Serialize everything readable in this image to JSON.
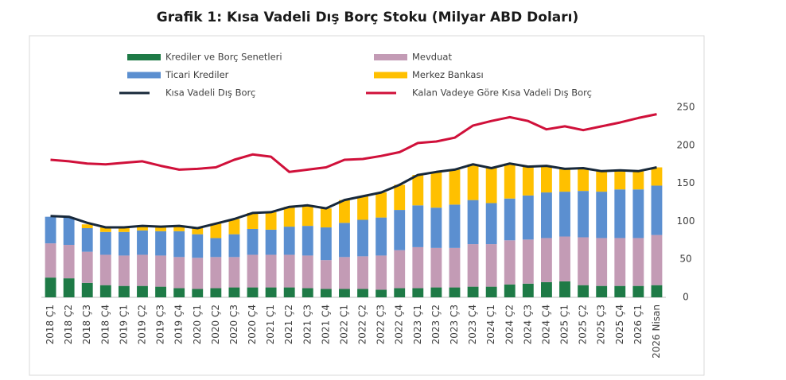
{
  "chart_data": {
    "type": "bar",
    "stacked": true,
    "title": "Grafik 1: Kısa Vadeli Dış Borç Stoku (Milyar ABD Doları)",
    "categories": [
      "2018 Ç1",
      "2018 Ç2",
      "2018 Ç3",
      "2018 Ç4",
      "2019 Ç1",
      "2019 Ç2",
      "2019 Ç3",
      "2019 Ç4",
      "2020 Ç1",
      "2020 Ç2",
      "2020 Ç3",
      "2020 Ç4",
      "2021 Ç1",
      "2021 Ç2",
      "2021 Ç3",
      "2021 Ç4",
      "2022 Ç1",
      "2022 Ç2",
      "2022 Ç3",
      "2022 Ç4",
      "2023 Ç1",
      "2023 Ç2",
      "2023 Ç3",
      "2023 Ç4",
      "2024 Ç1",
      "2024 Ç2",
      "2024 Ç3",
      "2024 Ç4",
      "2025 Ç1",
      "2025 Ç2",
      "2025 Ç3",
      "2025 Ç4",
      "2026 Ç1",
      "2026 Nisan"
    ],
    "series": [
      {
        "name": "Krediler ve Borç Senetleri",
        "type": "bar",
        "color": "#1e7a46",
        "values": [
          26,
          25,
          19,
          16,
          15,
          15,
          14,
          12,
          11,
          12,
          13,
          13,
          13,
          13,
          12,
          11,
          11,
          11,
          10,
          12,
          12,
          13,
          13,
          14,
          14,
          17,
          18,
          20,
          21,
          16,
          15,
          15,
          15,
          16
        ]
      },
      {
        "name": "Mevduat",
        "type": "bar",
        "color": "#c39bb5",
        "values": [
          45,
          44,
          41,
          40,
          40,
          41,
          41,
          41,
          41,
          41,
          40,
          43,
          43,
          43,
          43,
          38,
          42,
          43,
          45,
          50,
          54,
          52,
          52,
          56,
          56,
          58,
          58,
          58,
          59,
          63,
          63,
          63,
          63,
          66
        ]
      },
      {
        "name": "Ticari Krediler",
        "type": "bar",
        "color": "#5b8fd0",
        "values": [
          35,
          36,
          31,
          30,
          31,
          32,
          32,
          34,
          31,
          25,
          30,
          34,
          33,
          37,
          39,
          43,
          45,
          48,
          50,
          53,
          55,
          53,
          57,
          58,
          54,
          55,
          58,
          60,
          59,
          61,
          61,
          64,
          64,
          65
        ]
      },
      {
        "name": "Merkez Bankası",
        "type": "bar",
        "color": "#ffc000",
        "values": [
          0,
          0,
          5,
          6,
          6,
          6,
          6,
          7,
          8,
          19,
          20,
          21,
          23,
          26,
          27,
          25,
          30,
          31,
          33,
          33,
          40,
          47,
          46,
          47,
          46,
          46,
          38,
          35,
          30,
          30,
          27,
          25,
          24,
          24
        ]
      },
      {
        "name": "Kısa Vadeli Dış Borç",
        "type": "line",
        "color": "#17283a",
        "values": [
          107,
          106,
          98,
          92,
          92,
          94,
          93,
          94,
          91,
          97,
          103,
          111,
          112,
          119,
          121,
          117,
          128,
          133,
          138,
          148,
          161,
          165,
          168,
          175,
          170,
          176,
          172,
          173,
          169,
          170,
          166,
          167,
          166,
          171
        ]
      },
      {
        "name": "Kalan Vadeye Göre Kısa Vadeli Dış Borç",
        "type": "line",
        "color": "#d0103a",
        "values": [
          181,
          179,
          176,
          175,
          177,
          179,
          173,
          168,
          169,
          171,
          181,
          188,
          185,
          165,
          168,
          171,
          181,
          182,
          186,
          191,
          203,
          205,
          210,
          226,
          232,
          237,
          232,
          221,
          225,
          220,
          225,
          230,
          236,
          241
        ]
      }
    ],
    "ylim": [
      0,
      250
    ],
    "yticks": [
      0,
      50,
      100,
      150,
      200,
      250
    ],
    "grid": false
  }
}
